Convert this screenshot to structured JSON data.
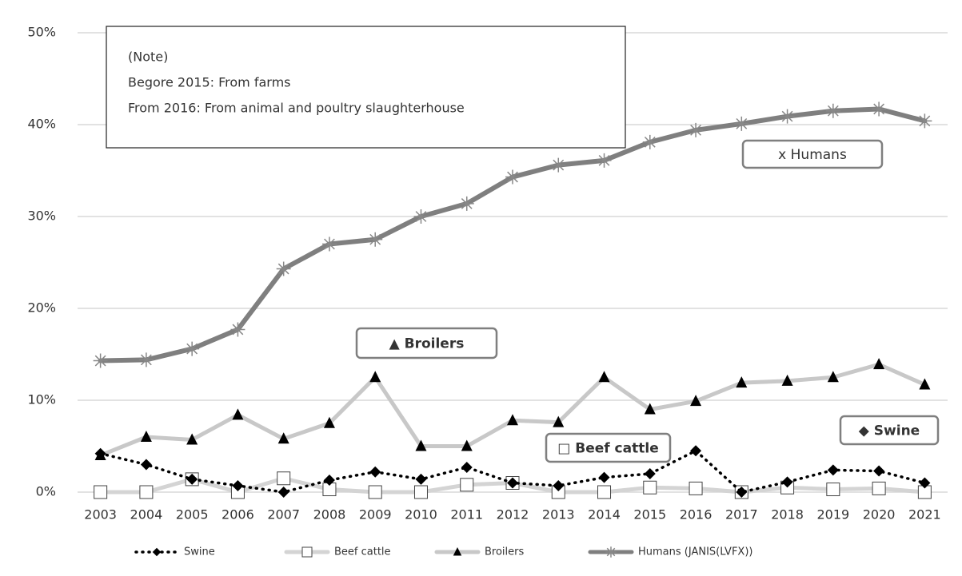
{
  "chart_data": {
    "type": "line",
    "categories": [
      "2003",
      "2004",
      "2005",
      "2006",
      "2007",
      "2008",
      "2009",
      "2010",
      "2011",
      "2012",
      "2013",
      "2014",
      "2015",
      "2016",
      "2017",
      "2018",
      "2019",
      "2020",
      "2021"
    ],
    "series": [
      {
        "name": "Swine",
        "color": "#000000",
        "marker": "diamond",
        "line_style": "dotted",
        "values": [
          4.2,
          3.0,
          1.4,
          0.7,
          0,
          1.3,
          2.2,
          1.4,
          2.7,
          1.0,
          0.7,
          1.6,
          2.0,
          4.5,
          0,
          1.1,
          2.4,
          2.3,
          1.0
        ]
      },
      {
        "name": "Beef cattle",
        "color": "#d4d4d4",
        "marker": "square",
        "line_style": "solid",
        "values": [
          0,
          0,
          1.4,
          0,
          1.5,
          0.3,
          0,
          0,
          0.8,
          1.0,
          0,
          0,
          0.5,
          0.4,
          0,
          0.5,
          0.3,
          0.4,
          0
        ]
      },
      {
        "name": "Broilers",
        "color": "#c8c8c8",
        "marker": "triangle",
        "line_style": "solid",
        "values": [
          4.0,
          6.0,
          5.7,
          8.4,
          5.8,
          7.5,
          12.5,
          5.0,
          5.0,
          7.8,
          7.6,
          12.5,
          9.0,
          9.9,
          11.9,
          12.1,
          12.5,
          13.9,
          11.7
        ]
      },
      {
        "name": "Humans (JANIS(LVFX))",
        "color": "#7f7f7f",
        "marker": "asterisk",
        "line_style": "solid",
        "values": [
          14.3,
          14.4,
          15.6,
          17.7,
          24.3,
          27.0,
          27.5,
          30.0,
          31.4,
          34.3,
          35.6,
          36.1,
          38.1,
          39.4,
          40.1,
          40.9,
          41.5,
          41.7,
          40.4
        ]
      }
    ],
    "ylim": [
      0,
      50
    ],
    "yticks": [
      {
        "value": 0,
        "label": "0%"
      },
      {
        "value": 10,
        "label": "10%"
      },
      {
        "value": 20,
        "label": "20%"
      },
      {
        "value": 30,
        "label": "30%"
      },
      {
        "value": 40,
        "label": "40%"
      },
      {
        "value": 50,
        "label": "50%"
      }
    ],
    "grid": true,
    "legend": "bottom",
    "note": [
      "(Note)",
      "Begore 2015: From farms",
      "From 2016: From animal and poultry slaughterhouse"
    ],
    "annotations": [
      "x Humans",
      "▲ Broilers",
      "□ Beef cattle",
      "◆ Swine"
    ]
  }
}
